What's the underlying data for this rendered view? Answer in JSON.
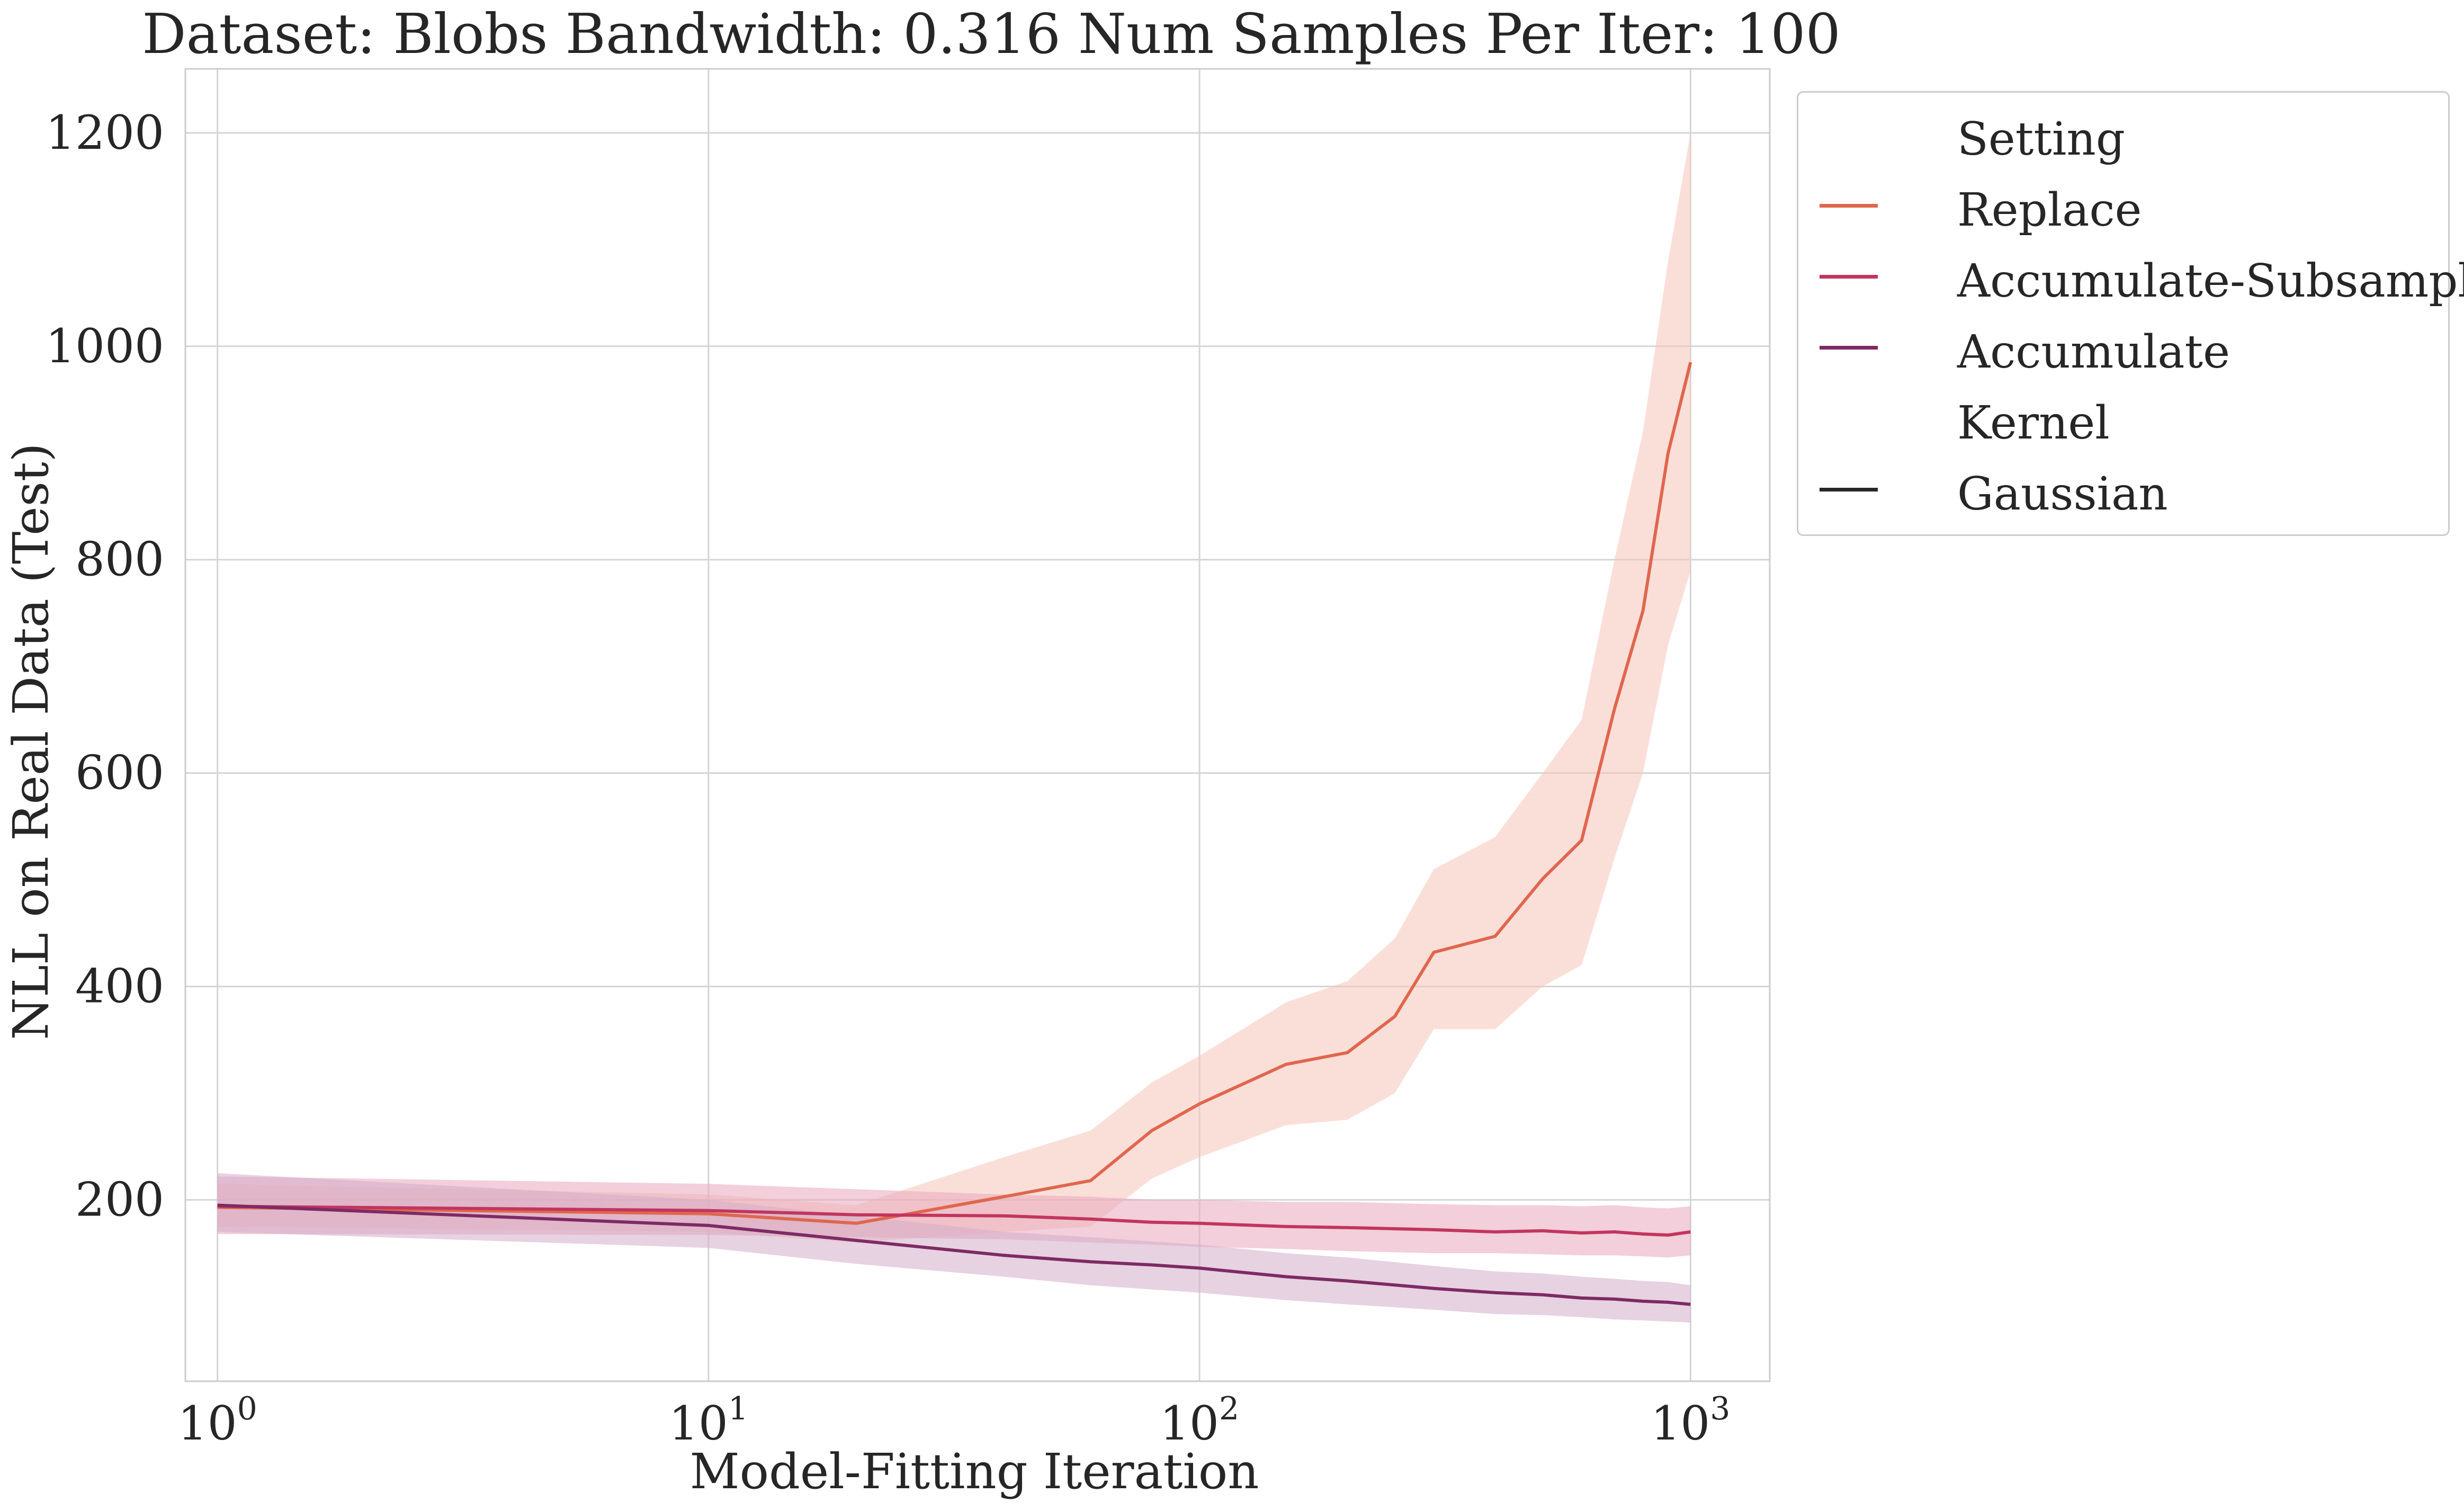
{
  "chart_data": {
    "type": "line",
    "title": "Dataset: Blobs Bandwidth: 0.316 Num Samples Per Iter: 100",
    "xlabel": "Model-Fitting Iteration",
    "ylabel": "NLL on Real Data (Test)",
    "xscale": "log",
    "xlim": [
      0.86,
      1450
    ],
    "ylim": [
      30,
      1260
    ],
    "x_ticks": [
      {
        "value": 1,
        "base": "10",
        "exp": "0"
      },
      {
        "value": 10,
        "base": "10",
        "exp": "1"
      },
      {
        "value": 100,
        "base": "10",
        "exp": "2"
      },
      {
        "value": 1000,
        "base": "10",
        "exp": "3"
      }
    ],
    "y_ticks": [
      "200",
      "400",
      "600",
      "800",
      "1000",
      "1200"
    ],
    "grid": true,
    "legend_placement": "outside-right",
    "series": [
      {
        "name": "Replace",
        "color": "#e0664e",
        "band_color": "#f5c4b8",
        "x": [
          1,
          10,
          20,
          40,
          60,
          80,
          100,
          150,
          200,
          250,
          300,
          400,
          500,
          600,
          700,
          800,
          900,
          1000
        ],
        "y": [
          193,
          187,
          178,
          203,
          218,
          265,
          290,
          327,
          338,
          372,
          432,
          447,
          501,
          537,
          660,
          752,
          900,
          985
        ],
        "lower": [
          175,
          170,
          160,
          170,
          175,
          220,
          240,
          270,
          275,
          300,
          360,
          360,
          400,
          420,
          520,
          600,
          720,
          790
        ],
        "upper": [
          215,
          205,
          195,
          240,
          265,
          310,
          335,
          385,
          405,
          445,
          510,
          540,
          600,
          650,
          800,
          920,
          1080,
          1200
        ]
      },
      {
        "name": "Accumulate-Subsample",
        "color": "#c2355e",
        "band_color": "#e8a7bb",
        "x": [
          1,
          10,
          20,
          40,
          60,
          80,
          100,
          150,
          200,
          300,
          400,
          500,
          600,
          700,
          800,
          900,
          1000
        ],
        "y": [
          194,
          190,
          186,
          185,
          182,
          179,
          178,
          175,
          174,
          172,
          170,
          171,
          169,
          170,
          168,
          167,
          170
        ],
        "lower": [
          168,
          167,
          165,
          163,
          160,
          158,
          156,
          154,
          152,
          150,
          150,
          149,
          148,
          148,
          147,
          146,
          148
        ],
        "upper": [
          222,
          215,
          210,
          205,
          203,
          200,
          200,
          198,
          198,
          196,
          195,
          195,
          194,
          195,
          193,
          192,
          194
        ]
      },
      {
        "name": "Accumulate",
        "color": "#7e2a65",
        "band_color": "#d3adc8",
        "x": [
          1,
          10,
          20,
          40,
          60,
          80,
          100,
          150,
          200,
          300,
          400,
          500,
          600,
          700,
          800,
          900,
          1000
        ],
        "y": [
          195,
          176,
          162,
          148,
          142,
          139,
          136,
          128,
          124,
          117,
          113,
          111,
          108,
          107,
          105,
          104,
          102
        ],
        "lower": [
          170,
          155,
          140,
          128,
          120,
          116,
          113,
          106,
          102,
          97,
          93,
          92,
          90,
          88,
          87,
          86,
          85
        ],
        "upper": [
          225,
          200,
          185,
          170,
          165,
          161,
          158,
          150,
          146,
          138,
          133,
          131,
          128,
          126,
          124,
          123,
          120
        ]
      }
    ],
    "legend": {
      "setting_header": "Setting",
      "kernel_header": "Kernel",
      "entries": [
        {
          "label": "Replace",
          "color": "#e0664e"
        },
        {
          "label": "Accumulate-Subsample",
          "color": "#c2355e"
        },
        {
          "label": "Accumulate",
          "color": "#7e2a65"
        }
      ],
      "kernel_entry": {
        "label": "Gaussian",
        "color": "#262626"
      }
    }
  }
}
